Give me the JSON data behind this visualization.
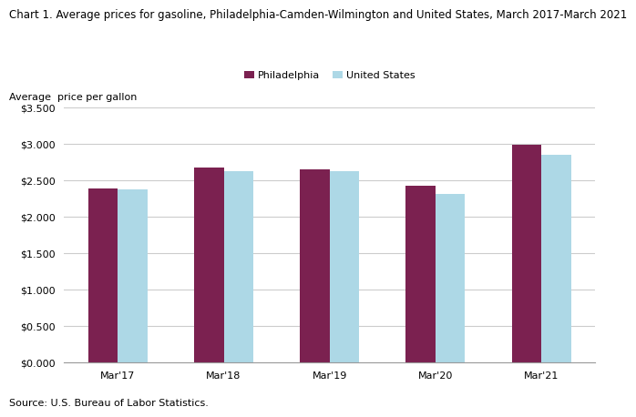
{
  "title": "Chart 1. Average prices for gasoline, Philadelphia-Camden-Wilmington and United States, March 2017-March 2021",
  "ylabel": "Average  price per gallon",
  "source": "Source: U.S. Bureau of Labor Statistics.",
  "categories": [
    "Mar'17",
    "Mar'18",
    "Mar'19",
    "Mar'20",
    "Mar'21"
  ],
  "philadelphia": [
    2.39,
    2.67,
    2.65,
    2.43,
    2.99
  ],
  "us": [
    2.375,
    2.63,
    2.63,
    2.32,
    2.85
  ],
  "philadelphia_color": "#7B2150",
  "us_color": "#ADD8E6",
  "ylim": [
    0.0,
    3.5
  ],
  "yticks": [
    0.0,
    0.5,
    1.0,
    1.5,
    2.0,
    2.5,
    3.0,
    3.5
  ],
  "legend_labels": [
    "Philadelphia",
    "United States"
  ],
  "bar_width": 0.28,
  "title_fontsize": 8.5,
  "axis_label_fontsize": 8,
  "tick_fontsize": 8,
  "legend_fontsize": 8,
  "source_fontsize": 8,
  "background_color": "#ffffff",
  "plot_bg_color": "#ffffff",
  "grid_color": "#cccccc"
}
